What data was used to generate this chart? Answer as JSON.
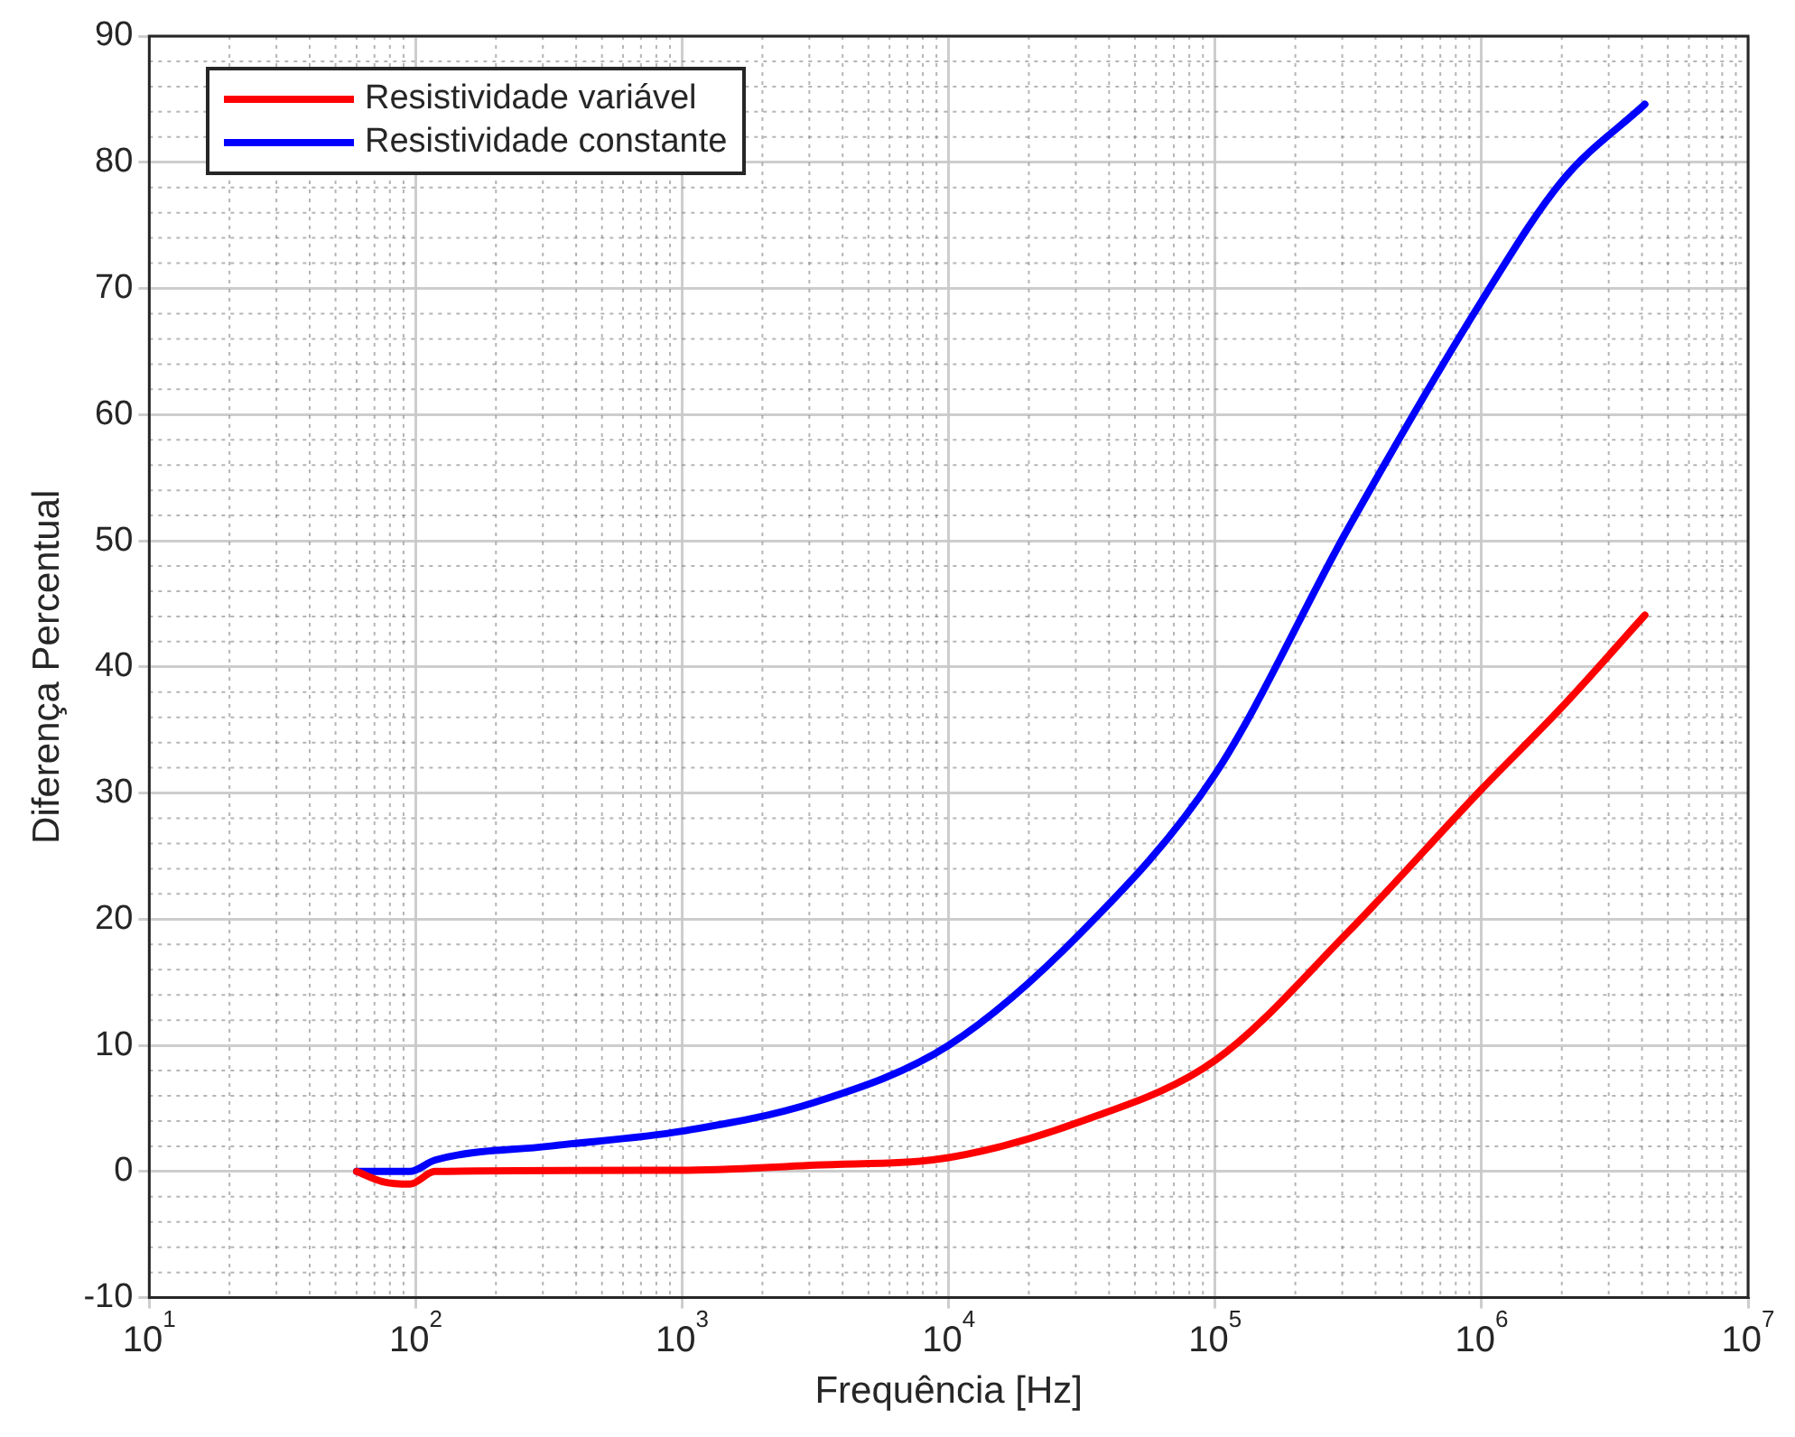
{
  "chart_data": {
    "type": "line",
    "xlabel": "Frequência [Hz]",
    "ylabel": "Diferença Percentual",
    "log": "x",
    "xlim": [
      10,
      10000000
    ],
    "xticks": [
      {
        "value": 10,
        "label": "10$^{1}$"
      },
      {
        "value": 100,
        "label": "10$^{2}$"
      },
      {
        "value": 1000,
        "label": "10$^{3}$"
      },
      {
        "value": 10000,
        "label": "10$^{4}$"
      },
      {
        "value": 100000,
        "label": "10$^{5}$"
      },
      {
        "value": 1000000,
        "label": "10$^{6}$"
      },
      {
        "value": 10000000,
        "label": "10$^{7}$"
      }
    ],
    "ylim": [
      -10,
      90
    ],
    "yticks": [
      -10,
      0,
      10,
      20,
      30,
      40,
      50,
      60,
      70,
      80,
      90
    ],
    "grid": true,
    "legend": "top left",
    "line_style": "solid",
    "marker": "none",
    "series": [
      {
        "name": "Resistividade variável",
        "color": "#ff0000",
        "x": [
          60,
          75,
          95,
          118,
          1000,
          3162,
          10000,
          31623,
          100000,
          316228,
          1000000,
          2000000,
          4100000
        ],
        "values": [
          0,
          -0.8,
          -1,
          0,
          0.1,
          0.5,
          1.1,
          4,
          8.8,
          19,
          30.3,
          36.8,
          44.1
        ]
      },
      {
        "name": "Resistividade constante",
        "color": "#0000ff",
        "x": [
          60,
          95,
          118,
          316,
          1000,
          3162,
          10000,
          31623,
          100000,
          316228,
          1000000,
          2000000,
          4100000
        ],
        "values": [
          0,
          0,
          0.9,
          2,
          3.2,
          5.5,
          10,
          19,
          31.5,
          51,
          69,
          78.5,
          84.6
        ]
      }
    ]
  }
}
